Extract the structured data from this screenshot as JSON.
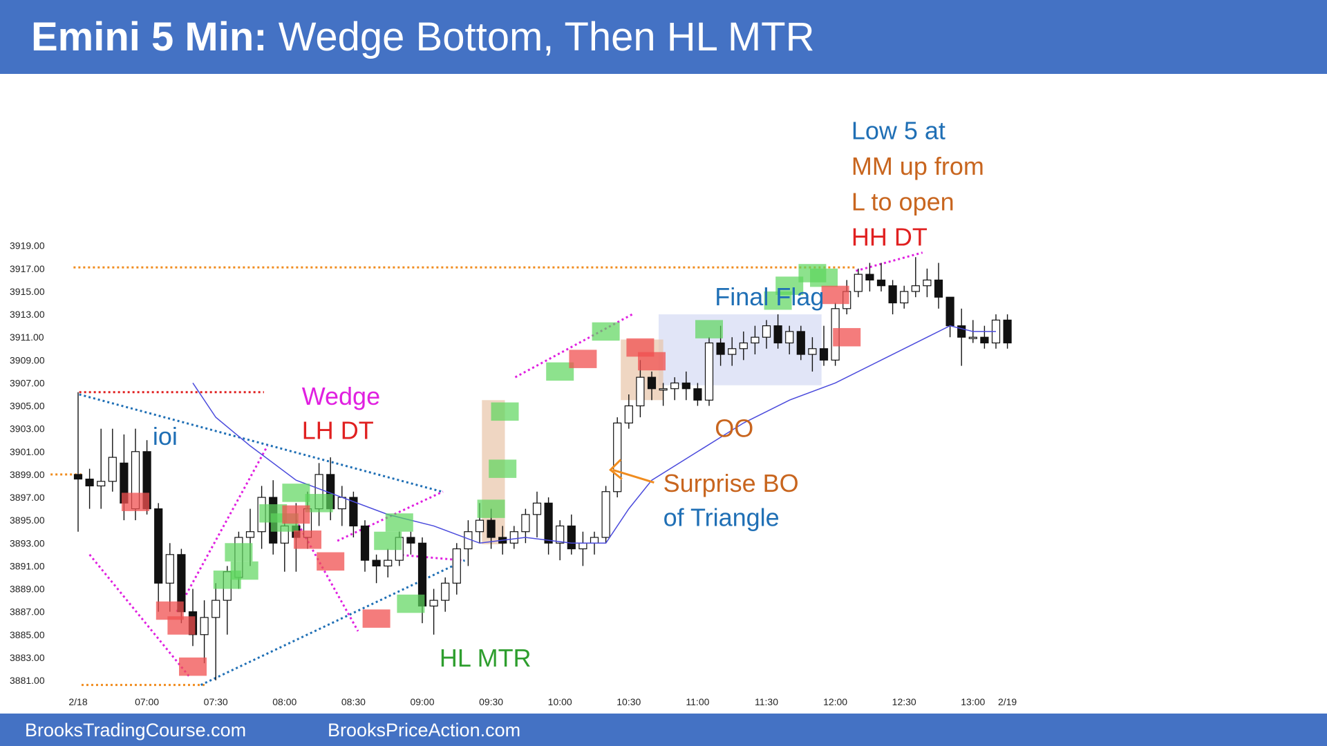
{
  "header": {
    "title_bold": "Emini 5 Min:",
    "title_rest": " Wedge Bottom, Then HL MTR"
  },
  "footer": {
    "left": "BrooksTradingCourse.com",
    "right": "BrooksPriceAction.com"
  },
  "colors": {
    "bar_blue": "#4472c4",
    "bull_bar": "#5cd65c",
    "bear_bar": "#f05050",
    "ema": "#4a4adc",
    "magenta": "#e020e0",
    "trend_blue": "#1f6fb5",
    "orange": "#f08c1e",
    "red_line": "#e02020",
    "box_fill": "#c8d0f0",
    "bar_tint": "#e8c4a8"
  },
  "chart_data": {
    "type": "candlestick",
    "ylim": [
      3880,
      3920
    ],
    "y_ticks": [
      "3919.00",
      "3917.00",
      "3915.00",
      "3913.00",
      "3911.00",
      "3909.00",
      "3907.00",
      "3905.00",
      "3903.00",
      "3901.00",
      "3899.00",
      "3897.00",
      "3895.00",
      "3893.00",
      "3891.00",
      "3889.00",
      "3887.00",
      "3885.00",
      "3883.00",
      "3881.00"
    ],
    "x_ticks": [
      {
        "bar": 0,
        "label": "2/18"
      },
      {
        "bar": 6,
        "label": "07:00"
      },
      {
        "bar": 12,
        "label": "07:30"
      },
      {
        "bar": 18,
        "label": "08:00"
      },
      {
        "bar": 24,
        "label": "08:30"
      },
      {
        "bar": 30,
        "label": "09:00"
      },
      {
        "bar": 36,
        "label": "09:30"
      },
      {
        "bar": 42,
        "label": "10:00"
      },
      {
        "bar": 48,
        "label": "10:30"
      },
      {
        "bar": 54,
        "label": "11:00"
      },
      {
        "bar": 60,
        "label": "11:30"
      },
      {
        "bar": 66,
        "label": "12:00"
      },
      {
        "bar": 72,
        "label": "12:30"
      },
      {
        "bar": 78,
        "label": "13:00"
      },
      {
        "bar": 81,
        "label": "2/19"
      }
    ],
    "ohlc": [
      [
        3899.0,
        3906.2,
        3894.0,
        3898.6
      ],
      [
        3898.6,
        3899.5,
        3896.0,
        3898.0
      ],
      [
        3898.0,
        3903.0,
        3896.0,
        3898.4
      ],
      [
        3898.4,
        3903.0,
        3897.5,
        3900.5
      ],
      [
        3900.0,
        3902.5,
        3895.0,
        3896.5
      ],
      [
        3896.0,
        3903.0,
        3895.0,
        3901.0
      ],
      [
        3901.0,
        3902.0,
        3895.5,
        3896.0
      ],
      [
        3896.0,
        3896.5,
        3887.0,
        3889.5
      ],
      [
        3889.5,
        3893.0,
        3887.0,
        3892.0
      ],
      [
        3892.0,
        3892.5,
        3886.0,
        3887.0
      ],
      [
        3887.0,
        3889.0,
        3884.0,
        3885.0
      ],
      [
        3885.0,
        3888.0,
        3882.5,
        3886.5
      ],
      [
        3886.5,
        3889.5,
        3881.0,
        3888.0
      ],
      [
        3888.0,
        3891.0,
        3885.0,
        3890.5
      ],
      [
        3890.0,
        3894.0,
        3889.0,
        3893.5
      ],
      [
        3893.5,
        3896.0,
        3891.0,
        3894.0
      ],
      [
        3894.0,
        3898.0,
        3892.5,
        3897.0
      ],
      [
        3897.0,
        3898.5,
        3892.0,
        3893.0
      ],
      [
        3893.0,
        3895.0,
        3890.5,
        3894.5
      ],
      [
        3894.5,
        3896.5,
        3890.5,
        3893.5
      ],
      [
        3893.5,
        3897.5,
        3892.5,
        3896.0
      ],
      [
        3896.0,
        3900.0,
        3894.5,
        3899.0
      ],
      [
        3899.0,
        3900.5,
        3895.0,
        3896.0
      ],
      [
        3896.0,
        3898.0,
        3894.5,
        3897.0
      ],
      [
        3897.0,
        3897.5,
        3893.5,
        3894.5
      ],
      [
        3894.5,
        3895.0,
        3890.5,
        3891.5
      ],
      [
        3891.5,
        3892.0,
        3889.5,
        3891.0
      ],
      [
        3891.0,
        3892.5,
        3890.0,
        3891.5
      ],
      [
        3891.5,
        3894.0,
        3891.0,
        3893.5
      ],
      [
        3893.5,
        3894.0,
        3892.0,
        3893.0
      ],
      [
        3893.0,
        3893.5,
        3886.0,
        3887.5
      ],
      [
        3887.5,
        3889.0,
        3885.0,
        3888.0
      ],
      [
        3888.0,
        3890.0,
        3887.0,
        3889.5
      ],
      [
        3889.5,
        3893.0,
        3888.5,
        3892.5
      ],
      [
        3892.5,
        3895.0,
        3891.0,
        3894.0
      ],
      [
        3894.0,
        3896.5,
        3893.0,
        3895.0
      ],
      [
        3895.0,
        3896.0,
        3892.5,
        3893.5
      ],
      [
        3893.5,
        3894.5,
        3892.0,
        3893.0
      ],
      [
        3893.0,
        3894.5,
        3892.5,
        3894.0
      ],
      [
        3894.0,
        3896.0,
        3893.0,
        3895.5
      ],
      [
        3895.5,
        3897.5,
        3893.5,
        3896.5
      ],
      [
        3896.5,
        3897.0,
        3892.0,
        3893.0
      ],
      [
        3893.0,
        3895.0,
        3891.5,
        3894.5
      ],
      [
        3894.5,
        3895.5,
        3892.0,
        3892.5
      ],
      [
        3892.5,
        3894.0,
        3891.0,
        3893.0
      ],
      [
        3893.0,
        3894.0,
        3892.0,
        3893.5
      ],
      [
        3893.5,
        3898.0,
        3893.0,
        3897.5
      ],
      [
        3897.5,
        3904.0,
        3897.0,
        3903.5
      ],
      [
        3903.5,
        3906.0,
        3903.0,
        3905.0
      ],
      [
        3905.0,
        3909.0,
        3904.0,
        3907.5
      ],
      [
        3907.5,
        3908.0,
        3905.5,
        3906.5
      ],
      [
        3906.5,
        3907.0,
        3905.0,
        3906.5
      ],
      [
        3906.5,
        3907.5,
        3905.5,
        3907.0
      ],
      [
        3907.0,
        3908.0,
        3905.5,
        3906.5
      ],
      [
        3906.5,
        3907.0,
        3905.0,
        3905.5
      ],
      [
        3905.5,
        3911.0,
        3905.0,
        3910.5
      ],
      [
        3910.5,
        3912.0,
        3908.5,
        3909.5
      ],
      [
        3909.5,
        3911.0,
        3908.5,
        3910.0
      ],
      [
        3910.0,
        3911.5,
        3909.0,
        3910.5
      ],
      [
        3910.5,
        3912.0,
        3909.5,
        3911.0
      ],
      [
        3911.0,
        3912.5,
        3910.0,
        3912.0
      ],
      [
        3912.0,
        3913.0,
        3910.0,
        3910.5
      ],
      [
        3910.5,
        3912.0,
        3909.5,
        3911.5
      ],
      [
        3911.5,
        3912.0,
        3909.0,
        3909.5
      ],
      [
        3909.5,
        3911.0,
        3908.0,
        3910.0
      ],
      [
        3910.0,
        3912.0,
        3908.5,
        3909.0
      ],
      [
        3909.0,
        3914.0,
        3908.5,
        3913.5
      ],
      [
        3913.5,
        3916.0,
        3913.0,
        3915.0
      ],
      [
        3915.0,
        3917.0,
        3914.5,
        3916.5
      ],
      [
        3916.5,
        3917.5,
        3915.0,
        3916.0
      ],
      [
        3916.0,
        3917.5,
        3915.0,
        3915.5
      ],
      [
        3915.5,
        3916.0,
        3913.0,
        3914.0
      ],
      [
        3914.0,
        3915.5,
        3913.5,
        3915.0
      ],
      [
        3915.0,
        3918.0,
        3914.5,
        3915.5
      ],
      [
        3915.5,
        3917.0,
        3914.5,
        3916.0
      ],
      [
        3916.0,
        3917.5,
        3913.5,
        3914.5
      ],
      [
        3914.5,
        3914.5,
        3911.0,
        3912.0
      ],
      [
        3912.0,
        3913.5,
        3908.5,
        3911.0
      ],
      [
        3911.0,
        3912.5,
        3910.5,
        3911.0
      ],
      [
        3911.0,
        3912.0,
        3910.0,
        3910.5
      ],
      [
        3910.5,
        3913.0,
        3910.0,
        3912.5
      ],
      [
        3912.5,
        3913.0,
        3910.0,
        3910.5
      ]
    ],
    "ema": [
      {
        "bar": 10,
        "value": 3907.0
      },
      {
        "bar": 12,
        "value": 3904.0
      },
      {
        "bar": 15,
        "value": 3901.5
      },
      {
        "bar": 19,
        "value": 3898.5
      },
      {
        "bar": 23,
        "value": 3897.0
      },
      {
        "bar": 27,
        "value": 3895.5
      },
      {
        "bar": 31,
        "value": 3894.5
      },
      {
        "bar": 35,
        "value": 3893.0
      },
      {
        "bar": 39,
        "value": 3893.5
      },
      {
        "bar": 43,
        "value": 3893.0
      },
      {
        "bar": 46,
        "value": 3893.0
      },
      {
        "bar": 48,
        "value": 3896.0
      },
      {
        "bar": 50,
        "value": 3898.5
      },
      {
        "bar": 54,
        "value": 3901.0
      },
      {
        "bar": 58,
        "value": 3903.5
      },
      {
        "bar": 62,
        "value": 3905.5
      },
      {
        "bar": 66,
        "value": 3907.0
      },
      {
        "bar": 70,
        "value": 3909.0
      },
      {
        "bar": 74,
        "value": 3911.0
      },
      {
        "bar": 76,
        "value": 3912.0
      },
      {
        "bar": 78,
        "value": 3911.5
      },
      {
        "bar": 80,
        "value": 3911.5
      }
    ],
    "annotations": [
      {
        "id": "wedge",
        "text": "Wedge",
        "color": "#e020e0",
        "bar": 19.5,
        "value": 3905.1
      },
      {
        "id": "lh-dt",
        "text": "LH DT",
        "color": "#e02020",
        "bar": 19.5,
        "value": 3902.1
      },
      {
        "id": "ioi",
        "text": "ioi",
        "color": "#1f6fb5",
        "bar": 6.5,
        "value": 3901.6
      },
      {
        "id": "hl-mtr",
        "text": "HL MTR",
        "color": "#2e9e2e",
        "bar": 31.5,
        "value": 3882.2
      },
      {
        "id": "oo",
        "text": "OO",
        "color": "#c8651e",
        "bar": 55.5,
        "value": 3902.3
      },
      {
        "id": "surprise-bo",
        "text": "Surprise BO",
        "color": "#c8651e",
        "bar": 51,
        "value": 3897.5
      },
      {
        "id": "of-triangle",
        "text": "of Triangle",
        "color": "#1f6fb5",
        "bar": 51,
        "value": 3894.5
      },
      {
        "id": "final-flag",
        "text": "Final Flag",
        "color": "#1f6fb5",
        "bar": 55.5,
        "value": 3913.8
      },
      {
        "id": "low5",
        "text": "Low 5 at",
        "color": "#1f6fb5",
        "bar": 67.4,
        "value": 3928.3
      },
      {
        "id": "mm-up",
        "text": "MM up from",
        "color": "#c8651e",
        "bar": 67.4,
        "value": 3925.2
      },
      {
        "id": "l-open",
        "text": "L to open",
        "color": "#c8651e",
        "bar": 67.4,
        "value": 3922.1
      },
      {
        "id": "hh-dt",
        "text": "HH DT",
        "color": "#e02020",
        "bar": 67.4,
        "value": 3919.0
      }
    ]
  }
}
